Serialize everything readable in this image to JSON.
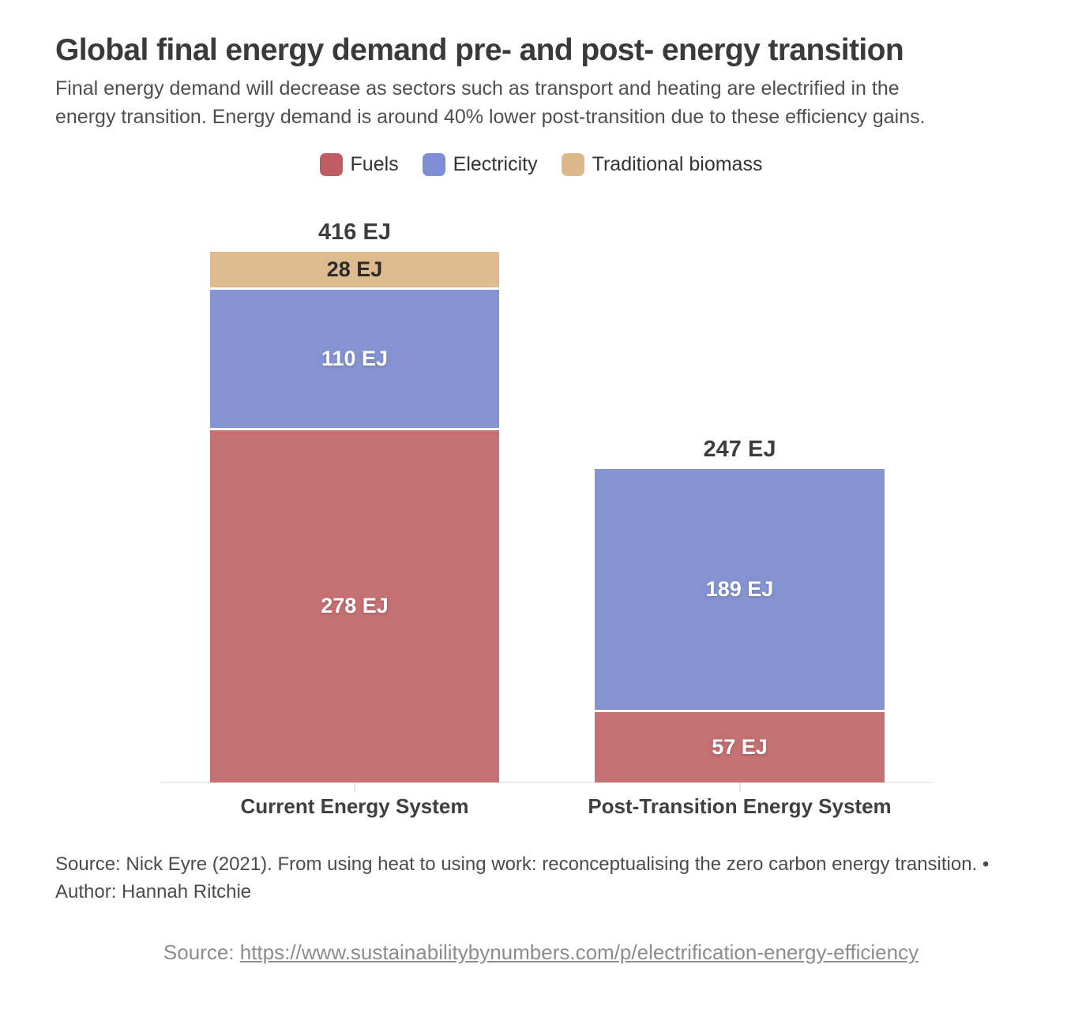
{
  "header": {
    "title": "Global final energy demand pre- and post- energy transition",
    "subtitle_lines": [
      "Final energy demand will decrease as sectors such as transport and heating are electrified in the",
      "energy transition. Energy demand is around 40% lower post-transition due to these efficiency gains."
    ]
  },
  "legend": {
    "items": [
      {
        "label": "Fuels",
        "color": "#bf5c61"
      },
      {
        "label": "Electricity",
        "color": "#7d8ed6"
      },
      {
        "label": "Traditional biomass",
        "color": "#dcb98b"
      }
    ]
  },
  "chart_data": {
    "type": "bar",
    "stacked": true,
    "unit": "EJ",
    "grid": false,
    "legend_position": "top",
    "categories": [
      "Current Energy System",
      "Post-Transition Energy System"
    ],
    "series": [
      {
        "name": "Fuels",
        "values": [
          278,
          57
        ],
        "color": "#c57073",
        "label_color": "#ffffff"
      },
      {
        "name": "Electricity",
        "values": [
          110,
          189
        ],
        "color": "#8594d0",
        "label_color": "#ffffff"
      },
      {
        "name": "Traditional biomass",
        "values": [
          28,
          0
        ],
        "color": "#debb8e",
        "label_color": "#2b2b2b"
      }
    ],
    "totals": [
      416,
      247
    ],
    "total_label_texts": [
      "416 EJ",
      "247 EJ"
    ]
  },
  "footer": {
    "source_lines": [
      "Source: Nick Eyre (2021). From using heat to using work: reconceptualising the zero carbon energy transition. •",
      "Author: Hannah Ritchie"
    ],
    "link_prefix": "Source: ",
    "link_url": "https://www.sustainabilitybynumbers.com/p/electrification-energy-efficiency"
  },
  "colors": {
    "title_text": "#3a3a3a",
    "subtitle_text": "#4e4e4e",
    "axis_line": "#eceae8",
    "total_label_text": "#3d3d3d",
    "x_label_text": "#3f3f3f",
    "footer_text": "#4b4b4b",
    "link_text": "#8c8c8c"
  }
}
